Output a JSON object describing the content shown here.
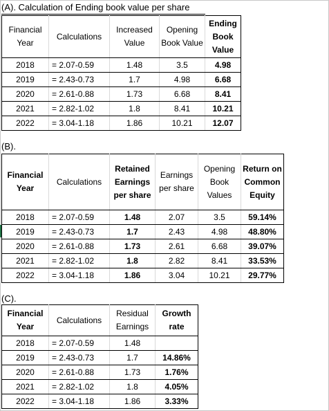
{
  "sectionA": {
    "title": "(A). Calculation of Ending book value per share",
    "headers": [
      "Financial Year",
      "Calculations",
      "Increased Value",
      "Opening Book Value",
      "Ending Book Value"
    ],
    "rows": [
      [
        "2018",
        "= 2.07-0.59",
        "1.48",
        "3.5",
        "4.98"
      ],
      [
        "2019",
        "= 2.43-0.73",
        "1.7",
        "4.98",
        "6.68"
      ],
      [
        "2020",
        "= 2.61-0.88",
        "1.73",
        "6.68",
        "8.41"
      ],
      [
        "2021",
        "= 2.82-1.02",
        "1.8",
        "8.41",
        "10.21"
      ],
      [
        "2022",
        "= 3.04-1.18",
        "1.86",
        "10.21",
        "12.07"
      ]
    ]
  },
  "sectionB": {
    "title": "(B).",
    "headers": [
      "Financial Year",
      "Calculations",
      "Retained Earnings per share",
      "Earnings per share",
      "Opening Book Values",
      "Return on Common Equity"
    ],
    "rows": [
      [
        "2018",
        "= 2.07-0.59",
        "1.48",
        "2.07",
        "3.5",
        "59.14%"
      ],
      [
        "2019",
        "= 2.43-0.73",
        "1.7",
        "2.43",
        "4.98",
        "48.80%"
      ],
      [
        "2020",
        "= 2.61-0.88",
        "1.73",
        "2.61",
        "6.68",
        "39.07%"
      ],
      [
        "2021",
        "= 2.82-1.02",
        "1.8",
        "2.82",
        "8.41",
        "33.53%"
      ],
      [
        "2022",
        "= 3.04-1.18",
        "1.86",
        "3.04",
        "10.21",
        "29.77%"
      ]
    ]
  },
  "sectionC": {
    "title": "(C).",
    "headers": [
      "Financial Year",
      "Calculations",
      "Residual Earnings",
      "Growth rate"
    ],
    "rows": [
      [
        "2018",
        "= 2.07-0.59",
        "1.48",
        ""
      ],
      [
        "2019",
        "= 2.43-0.73",
        "1.7",
        "14.86%"
      ],
      [
        "2020",
        "= 2.61-0.88",
        "1.73",
        "1.76%"
      ],
      [
        "2021",
        "= 2.82-1.02",
        "1.8",
        "4.05%"
      ],
      [
        "2022",
        "= 3.04-1.18",
        "1.86",
        "3.33%"
      ]
    ]
  }
}
